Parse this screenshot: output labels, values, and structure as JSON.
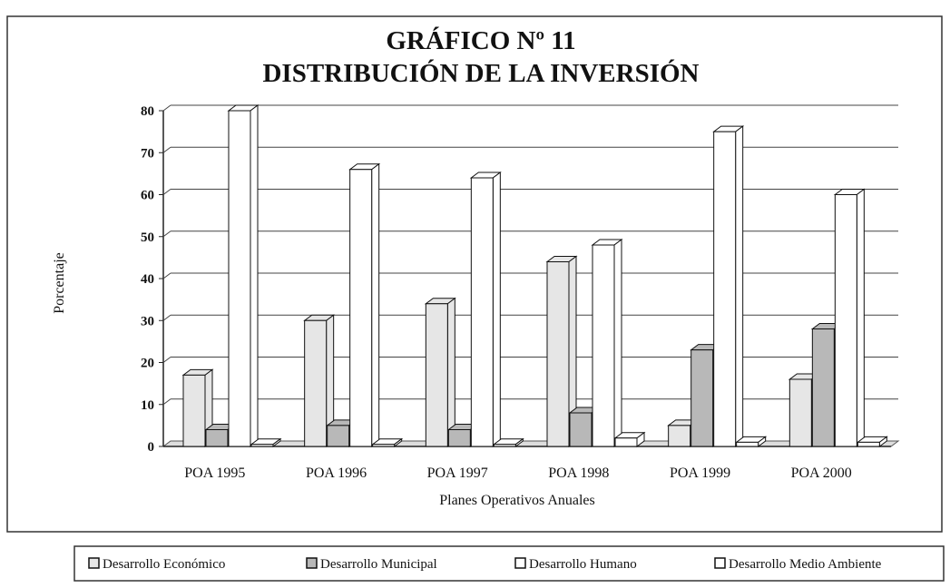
{
  "chart_data": {
    "type": "bar3d",
    "title": "GRÁFICO Nº 11",
    "subtitle": "DISTRIBUCIÓN DE LA INVERSIÓN",
    "y_label": "Porcentaje",
    "x_label": "Planes Operativos Anuales",
    "categories": [
      "POA 1995",
      "POA 1996",
      "POA 1997",
      "POA 1998",
      "POA 1999",
      "POA 2000"
    ],
    "series": [
      {
        "name": "Desarrollo Económico",
        "color": "#e6e6e6",
        "values": [
          17,
          30,
          34,
          44,
          5,
          16
        ]
      },
      {
        "name": "Desarrollo Municipal",
        "color": "#b8b8b8",
        "values": [
          4,
          5,
          4,
          8,
          23,
          28
        ]
      },
      {
        "name": "Desarrollo Humano",
        "color": "#ffffff",
        "values": [
          80,
          66,
          64,
          48,
          75,
          60
        ]
      },
      {
        "name": "Desarrollo Medio Ambiente",
        "color": "#ffffff",
        "values": [
          0.5,
          0.5,
          0.5,
          2,
          1,
          1
        ]
      }
    ],
    "ylim": [
      0,
      80
    ],
    "yticks": [
      0,
      10,
      20,
      30,
      40,
      50,
      60,
      70,
      80
    ],
    "grid": true,
    "legend": "bottom"
  }
}
